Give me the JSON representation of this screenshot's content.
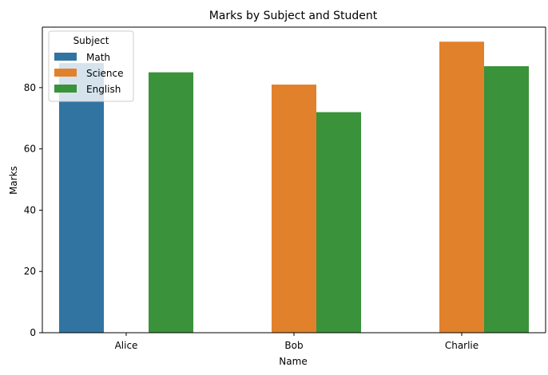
{
  "chart_data": {
    "type": "bar",
    "title": "Marks by Subject and Student",
    "xlabel": "Name",
    "ylabel": "Marks",
    "categories": [
      "Alice",
      "Bob",
      "Charlie"
    ],
    "series": [
      {
        "name": "Math",
        "color": "#3274a1",
        "values": [
          88,
          null,
          null
        ]
      },
      {
        "name": "Science",
        "color": "#e1812c",
        "values": [
          null,
          81,
          95
        ]
      },
      {
        "name": "English",
        "color": "#3a923a",
        "values": [
          85,
          72,
          87
        ]
      }
    ],
    "ylim": [
      0,
      99.75
    ],
    "yticks": [
      0,
      20,
      40,
      60,
      80
    ],
    "grid": false,
    "legend": {
      "title": "Subject",
      "placement": "top-left"
    }
  }
}
